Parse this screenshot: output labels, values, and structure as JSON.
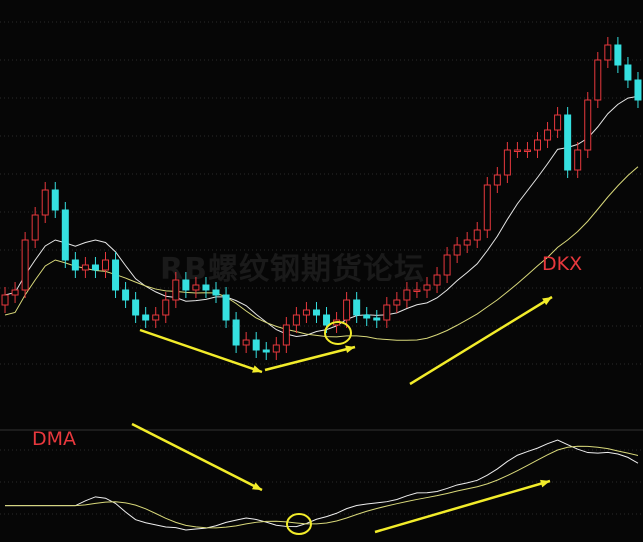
{
  "watermark": "RB螺纹钢期货论坛",
  "colors": {
    "background": "#060606",
    "up": "#e8383d",
    "down": "#35e0e0",
    "ma_fast": "#e6e6e6",
    "ma_slow": "#d8d87a",
    "annotation": "#f2ec2a",
    "label": "#e8383d",
    "grid": "#2a2a2a"
  },
  "chart_data": [
    {
      "type": "candlestick",
      "label": "DKX",
      "grid": true,
      "open": [
        95,
        105,
        110,
        160,
        185,
        210,
        190,
        140,
        130,
        135,
        130,
        140,
        110,
        100,
        85,
        80,
        85,
        100,
        120,
        110,
        115,
        110,
        105,
        80,
        55,
        60,
        50,
        48,
        55,
        75,
        85,
        90,
        85,
        75,
        80,
        100,
        85,
        82,
        80,
        95,
        100,
        110,
        110,
        115,
        125,
        145,
        155,
        160,
        170,
        215,
        225,
        250,
        250,
        250,
        260,
        270,
        285,
        230,
        250,
        300,
        340,
        355,
        335,
        320
      ],
      "high": [
        113,
        118,
        168,
        193,
        218,
        218,
        198,
        148,
        143,
        143,
        148,
        148,
        118,
        108,
        93,
        93,
        108,
        128,
        128,
        123,
        123,
        118,
        113,
        88,
        68,
        68,
        58,
        63,
        83,
        93,
        98,
        98,
        93,
        88,
        108,
        108,
        93,
        90,
        103,
        108,
        118,
        118,
        123,
        133,
        153,
        163,
        168,
        178,
        223,
        233,
        258,
        258,
        258,
        268,
        278,
        293,
        293,
        258,
        308,
        348,
        363,
        363,
        343,
        328
      ],
      "low": [
        87,
        97,
        102,
        152,
        177,
        182,
        132,
        122,
        122,
        122,
        122,
        102,
        92,
        77,
        72,
        72,
        77,
        92,
        102,
        102,
        102,
        97,
        72,
        47,
        47,
        42,
        40,
        40,
        47,
        67,
        77,
        77,
        67,
        67,
        72,
        77,
        74,
        72,
        72,
        87,
        92,
        102,
        102,
        107,
        117,
        137,
        147,
        152,
        162,
        207,
        217,
        242,
        242,
        242,
        252,
        262,
        222,
        222,
        242,
        292,
        332,
        327,
        312,
        292
      ],
      "close": [
        105,
        110,
        160,
        185,
        210,
        190,
        140,
        130,
        135,
        130,
        140,
        110,
        100,
        85,
        80,
        85,
        100,
        120,
        110,
        115,
        110,
        105,
        80,
        55,
        60,
        50,
        48,
        55,
        75,
        85,
        90,
        85,
        75,
        80,
        100,
        85,
        82,
        80,
        95,
        100,
        110,
        110,
        115,
        125,
        145,
        155,
        160,
        170,
        215,
        225,
        250,
        250,
        250,
        260,
        270,
        285,
        230,
        250,
        300,
        340,
        355,
        335,
        320,
        300
      ],
      "ylim": [
        0,
        400
      ]
    },
    {
      "type": "line",
      "label": "DMA",
      "grid": true
    }
  ]
}
